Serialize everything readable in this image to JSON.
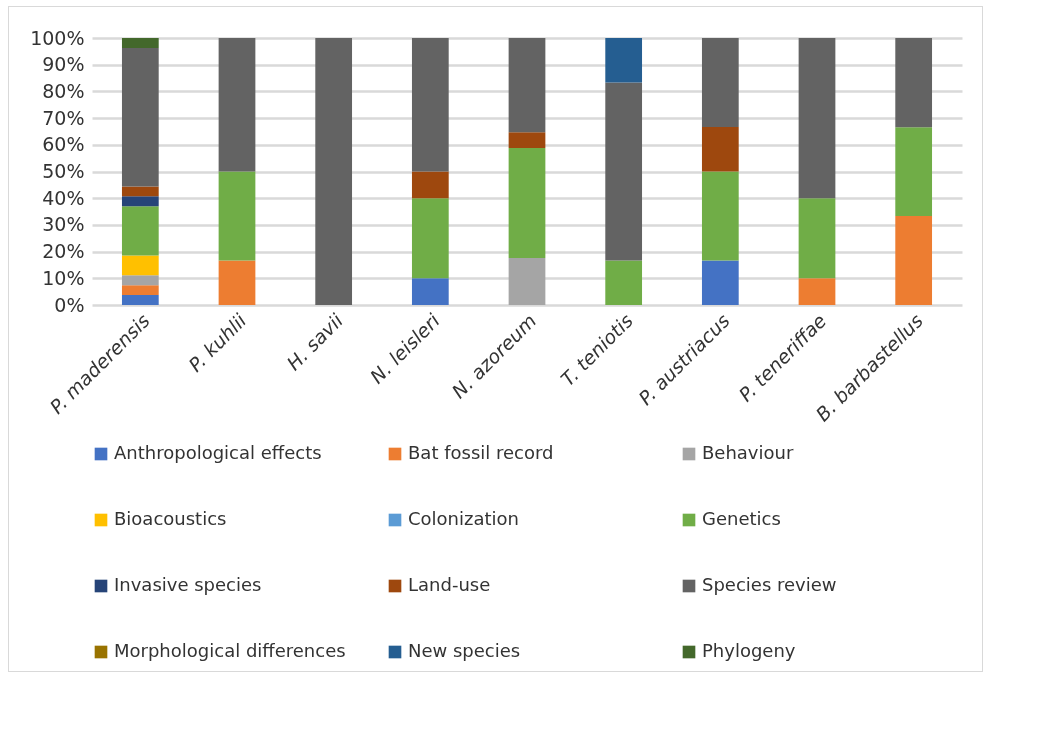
{
  "chart_data": {
    "type": "bar",
    "stacked": true,
    "categories": [
      "P. maderensis",
      "P. kuhlii",
      "H. savii",
      "N. leisleri",
      "N. azoreum",
      "T. teniotis",
      "P. austriacus",
      "P. teneriffae",
      "B. barbastellus"
    ],
    "series": [
      {
        "name": "Anthropological effects",
        "color": "#4472c4",
        "values": [
          3.7,
          0,
          0,
          10,
          0,
          0,
          16.7,
          0,
          0
        ]
      },
      {
        "name": "Bat fossil record",
        "color": "#ed7d31",
        "values": [
          3.7,
          16.7,
          0,
          0,
          0,
          0,
          0,
          10,
          33.3
        ]
      },
      {
        "name": "Behaviour",
        "color": "#a5a5a5",
        "values": [
          3.7,
          0,
          0,
          0,
          17.6,
          0,
          0,
          0,
          0
        ]
      },
      {
        "name": "Bioacoustics",
        "color": "#ffc000",
        "values": [
          7.4,
          0,
          0,
          0,
          0,
          0,
          0,
          0,
          0
        ]
      },
      {
        "name": "Colonization",
        "color": "#5b9bd5",
        "values": [
          0,
          0,
          0,
          0,
          0,
          0,
          0,
          0,
          0
        ]
      },
      {
        "name": "Genetics",
        "color": "#70ad47",
        "values": [
          18.5,
          33.3,
          0,
          30,
          41.2,
          16.7,
          33.3,
          30,
          33.3
        ]
      },
      {
        "name": "Invasive species",
        "color": "#264478",
        "values": [
          3.7,
          0,
          0,
          0,
          0,
          0,
          0,
          0,
          0
        ]
      },
      {
        "name": "Land-use",
        "color": "#9e480e",
        "values": [
          3.7,
          0,
          0,
          10,
          5.9,
          0,
          16.7,
          0,
          0
        ]
      },
      {
        "name": "Species review",
        "color": "#636363",
        "values": [
          51.9,
          50,
          100,
          50,
          35.3,
          66.6,
          33.3,
          60,
          33.4
        ]
      },
      {
        "name": "Morphological differences",
        "color": "#997300",
        "values": [
          0,
          0,
          0,
          0,
          0,
          0,
          0,
          0,
          0
        ]
      },
      {
        "name": "New species",
        "color": "#255e91",
        "values": [
          0,
          0,
          0,
          0,
          0,
          16.7,
          0,
          0,
          0
        ]
      },
      {
        "name": "Phylogeny",
        "color": "#43682b",
        "values": [
          3.7,
          0,
          0,
          0,
          0,
          0,
          0,
          0,
          0
        ]
      }
    ],
    "ylim": [
      0,
      100
    ],
    "yticks": [
      {
        "value": 0,
        "label": "0%"
      },
      {
        "value": 10,
        "label": "10%"
      },
      {
        "value": 20,
        "label": "20%"
      },
      {
        "value": 30,
        "label": "30%"
      },
      {
        "value": 40,
        "label": "40%"
      },
      {
        "value": 50,
        "label": "50%"
      },
      {
        "value": 60,
        "label": "60%"
      },
      {
        "value": 70,
        "label": "70%"
      },
      {
        "value": 80,
        "label": "80%"
      },
      {
        "value": 90,
        "label": "90%"
      },
      {
        "value": 100,
        "label": "100%"
      }
    ],
    "grid": "y",
    "legend": "bottom"
  }
}
